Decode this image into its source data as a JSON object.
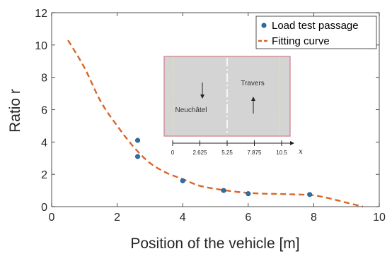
{
  "chart_data": {
    "type": "scatter",
    "xlabel": "Position of the vehicle [m]",
    "ylabel": "Ratio r",
    "xlim": [
      0,
      10
    ],
    "ylim": [
      0,
      12
    ],
    "xticks": [
      0,
      2,
      4,
      6,
      8,
      10
    ],
    "yticks": [
      0,
      2,
      4,
      6,
      8,
      10,
      12
    ],
    "grid": false,
    "legend_position": "top-right",
    "series": [
      {
        "name": "Load test passage",
        "kind": "scatter",
        "color": "#2a6fa8",
        "x": [
          2.625,
          2.625,
          4.0,
          5.25,
          6.0,
          7.875
        ],
        "y": [
          4.1,
          3.1,
          1.6,
          1.0,
          0.8,
          0.75
        ]
      },
      {
        "name": "Fitting curve",
        "kind": "dashed-line",
        "color": "#d9662a",
        "x": [
          0.5,
          1.0,
          1.5,
          2.0,
          2.5,
          3.0,
          3.5,
          4.0,
          4.5,
          5.0,
          5.5,
          6.0,
          6.5,
          7.0,
          7.5,
          8.0,
          8.5,
          9.0,
          9.5
        ],
        "y": [
          10.3,
          8.6,
          6.5,
          5.0,
          3.7,
          2.7,
          2.1,
          1.7,
          1.3,
          1.1,
          0.95,
          0.85,
          0.8,
          0.78,
          0.75,
          0.7,
          0.5,
          0.25,
          0.0
        ]
      }
    ],
    "inset": {
      "left_label": "Neuchâtel",
      "right_label": "Travers",
      "axis_ticks": [
        "0",
        "2.625",
        "5.25",
        "7.875",
        "10.5"
      ],
      "axis_var": "x",
      "colors": {
        "road": "#d4d4d4",
        "border": "#cc7d8a",
        "edge_line": "#e8e47a",
        "center_line": "#ffffff"
      }
    }
  }
}
